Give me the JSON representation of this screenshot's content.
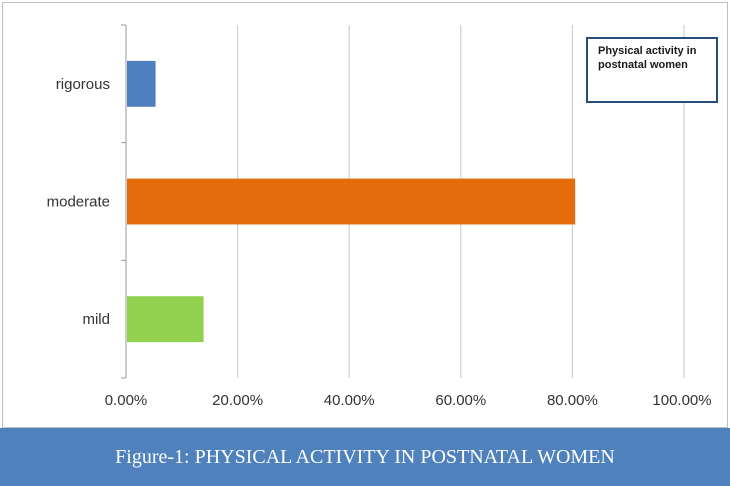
{
  "chart_data": {
    "type": "bar",
    "orientation": "horizontal",
    "categories": [
      "rigorous",
      "moderate",
      "mild"
    ],
    "series": [
      {
        "name": "Physical activity in postnatal women",
        "values": [
          0.053,
          0.805,
          0.139
        ]
      }
    ],
    "bar_colors": [
      "#4f7fbf",
      "#e46c0a",
      "#92d050"
    ],
    "x_tick_labels": [
      "0.00%",
      "20.00%",
      "40.00%",
      "60.00%",
      "80.00%",
      "100.00%"
    ],
    "xlim": [
      0,
      1
    ],
    "grid": true,
    "legend_position": "top-right"
  },
  "caption": "Figure-1: PHYSICAL ACTIVITY IN POSTNATAL WOMEN",
  "colors": {
    "caption_bg": "#4f81bd",
    "grid": "#c8c8c8",
    "legend_border": "#2a4d78"
  }
}
